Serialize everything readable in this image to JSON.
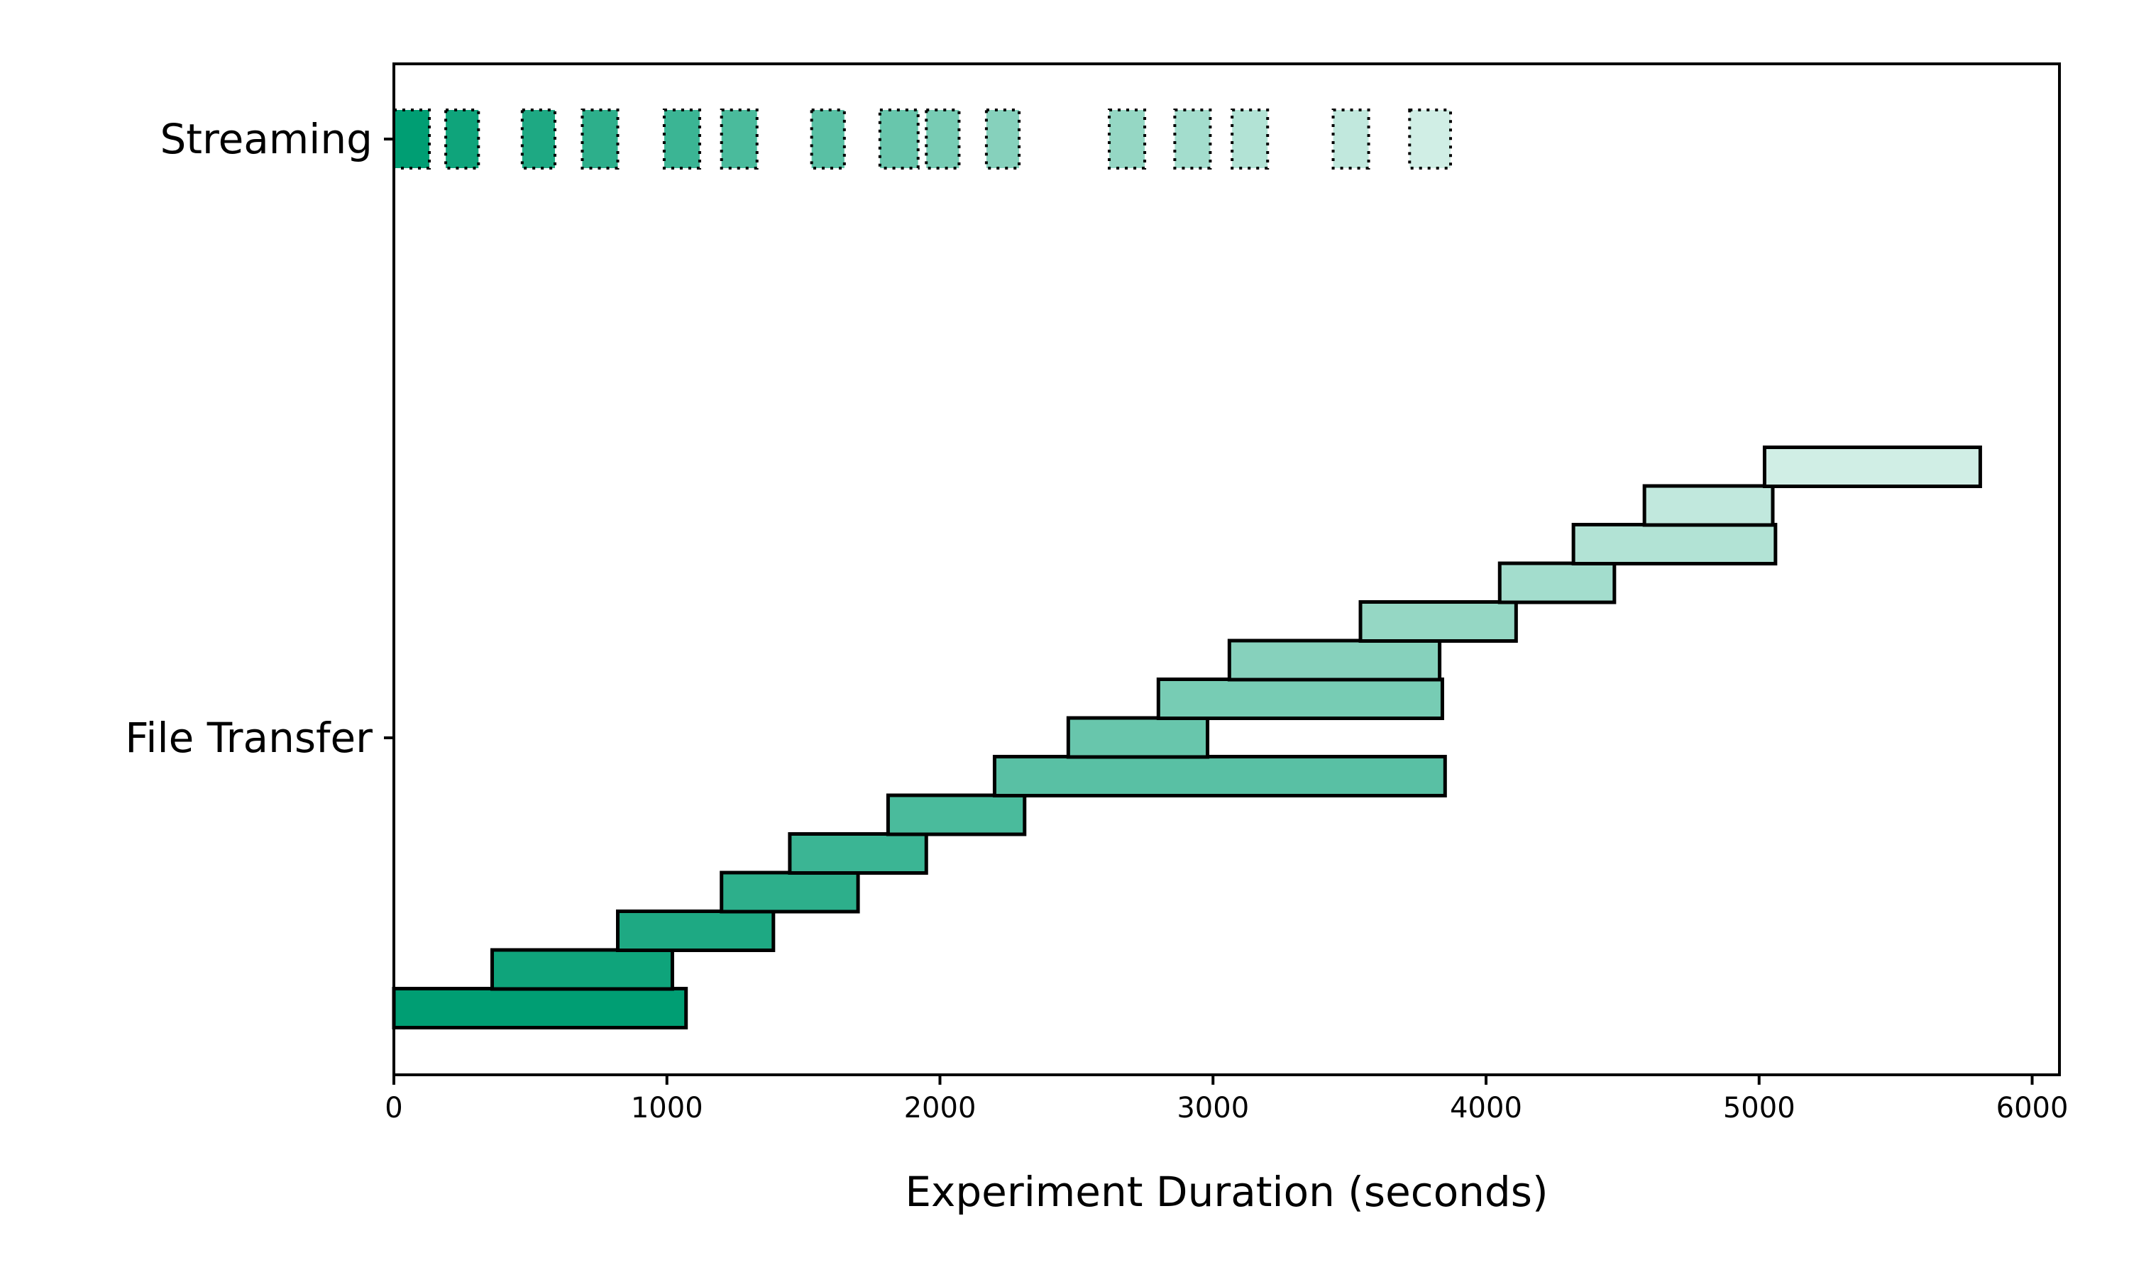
{
  "chart_data": {
    "type": "bar",
    "orientation": "horizontal-interval",
    "title": "",
    "xlabel": "Experiment Duration (seconds)",
    "ylabel": "",
    "xlim": [
      0,
      6100
    ],
    "xticks": [
      0,
      1000,
      2000,
      3000,
      4000,
      5000,
      6000
    ],
    "categories": [
      "Streaming",
      "File Transfer"
    ],
    "grid": false,
    "legend": "none",
    "colors": {
      "start": "#009e73",
      "end": "#d0eee5",
      "edge": "#000000"
    },
    "series": [
      {
        "category": "Streaming",
        "style": "dotted-edge",
        "intervals": [
          [
            0,
            130
          ],
          [
            190,
            310
          ],
          [
            470,
            590
          ],
          [
            690,
            820
          ],
          [
            990,
            1120
          ],
          [
            1200,
            1330
          ],
          [
            1530,
            1650
          ],
          [
            1780,
            1920
          ],
          [
            1950,
            2070
          ],
          [
            2170,
            2290
          ],
          [
            2620,
            2750
          ],
          [
            2860,
            2990
          ],
          [
            3070,
            3200
          ],
          [
            3440,
            3570
          ],
          [
            3720,
            3870
          ]
        ]
      },
      {
        "category": "File Transfer",
        "style": "solid-edge",
        "intervals": [
          [
            0,
            1070
          ],
          [
            360,
            1020
          ],
          [
            820,
            1390
          ],
          [
            1200,
            1700
          ],
          [
            1450,
            1950
          ],
          [
            1810,
            2310
          ],
          [
            2200,
            3850
          ],
          [
            2470,
            2980
          ],
          [
            2800,
            3840
          ],
          [
            3060,
            3830
          ],
          [
            3540,
            4110
          ],
          [
            4050,
            4470
          ],
          [
            4320,
            5060
          ],
          [
            4580,
            5050
          ],
          [
            5020,
            5810
          ]
        ]
      }
    ]
  }
}
